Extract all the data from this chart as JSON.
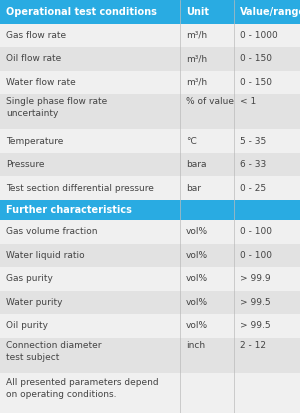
{
  "header_bg": "#29abe2",
  "header_text_color": "#ffffff",
  "section2_bg": "#29abe2",
  "section2_text_color": "#ffffff",
  "row_bg_light": "#f0f0f0",
  "row_bg_lighter": "#e2e2e2",
  "text_color": "#444444",
  "footer_bg": "#f0f0f0",
  "header1": "Operational test conditions",
  "header2": "Unit",
  "header3": "Value/range",
  "section2_label": "Further characteristics",
  "rows_part1": [
    [
      "Gas flow rate",
      "m³/h",
      "0 - 1000"
    ],
    [
      "Oil flow rate",
      "m³/h",
      "0 - 150"
    ],
    [
      "Water flow rate",
      "m³/h",
      "0 - 150"
    ],
    [
      "Single phase flow rate\nuncertainty",
      "% of value",
      "< 1"
    ],
    [
      "Temperature",
      "°C",
      "5 - 35"
    ],
    [
      "Pressure",
      "bara",
      "6 - 33"
    ],
    [
      "Test section differential pressure",
      "bar",
      "0 - 25"
    ]
  ],
  "rows_part2": [
    [
      "Gas volume fraction",
      "vol%",
      "0 - 100"
    ],
    [
      "Water liquid ratio",
      "vol%",
      "0 - 100"
    ],
    [
      "Gas purity",
      "vol%",
      "> 99.9"
    ],
    [
      "Water purity",
      "vol%",
      "> 99.5"
    ],
    [
      "Oil purity",
      "vol%",
      "> 99.5"
    ],
    [
      "Connection diameter\ntest subject",
      "inch",
      "2 - 12"
    ]
  ],
  "footer_text": "All presented parameters depend\non operating conditions.",
  "col_splits": [
    0.0,
    0.6,
    0.78,
    1.0
  ],
  "row_heights_raw": [
    1.0,
    1.0,
    1.0,
    1.0,
    1.5,
    1.0,
    1.0,
    1.0,
    0.85,
    1.0,
    1.0,
    1.0,
    1.0,
    1.0,
    1.5,
    1.7
  ]
}
